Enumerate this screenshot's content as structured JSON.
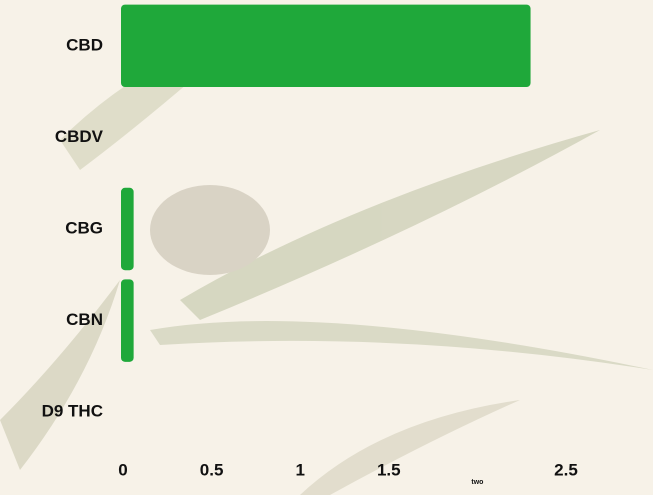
{
  "chart_data": {
    "type": "bar",
    "orientation": "horizontal",
    "categories": [
      "CBD",
      "CBDV",
      "CBG",
      "CBN",
      "D9 THC"
    ],
    "values": [
      2.3,
      0,
      0.06,
      0.06,
      0
    ],
    "color": "#1fa83a",
    "xlim": [
      0,
      2.5
    ],
    "xticks": [
      0,
      0.5,
      1,
      1.5,
      {
        "value": 2,
        "label": "two"
      },
      2.5
    ],
    "grid": false
  }
}
